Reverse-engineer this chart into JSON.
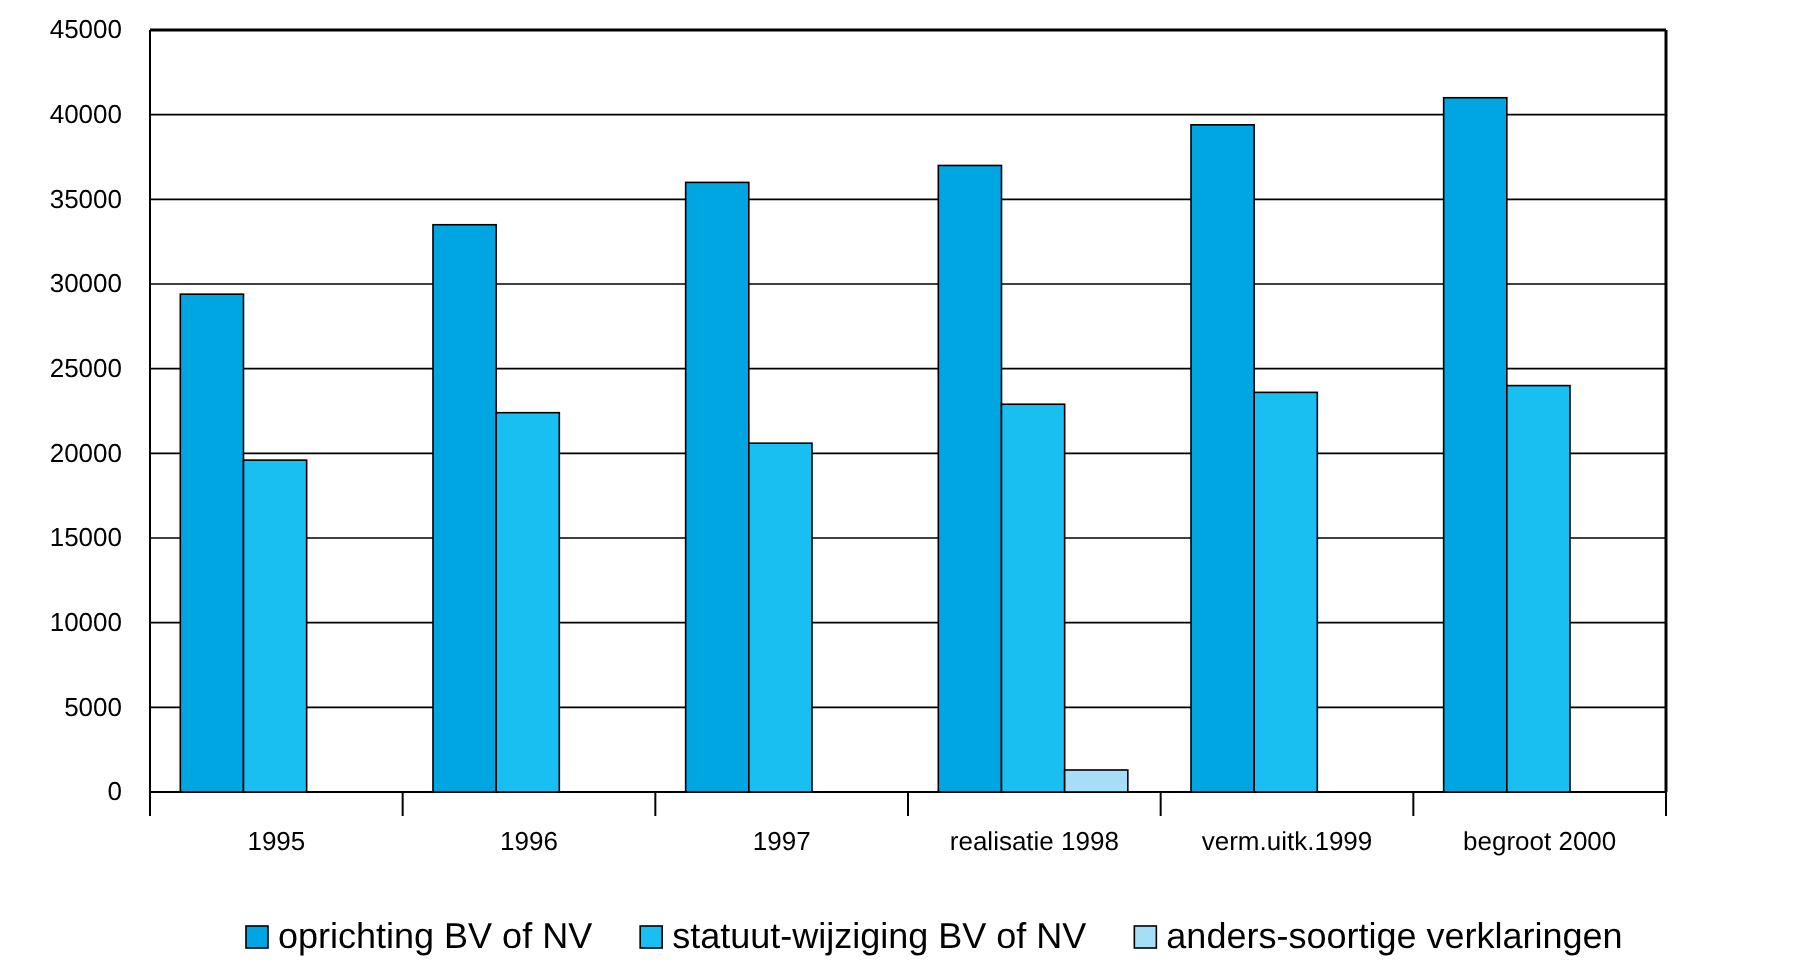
{
  "chart_data": {
    "type": "bar",
    "categories": [
      "1995",
      "1996",
      "1997",
      "realisatie 1998",
      "verm.uitk.1999",
      "begroot 2000"
    ],
    "series": [
      {
        "name": "oprichting BV of NV",
        "color": "#00a6e2",
        "values": [
          29400,
          33500,
          36000,
          37000,
          39400,
          41000
        ]
      },
      {
        "name": "statuut-wijziging BV of NV",
        "color": "#19bff0",
        "values": [
          19600,
          22400,
          20600,
          22900,
          23600,
          24000
        ]
      },
      {
        "name": "anders-soortige verklaringen",
        "color": "#a5def6",
        "values": [
          null,
          null,
          null,
          1300,
          null,
          null
        ]
      }
    ],
    "ylim": [
      0,
      45000
    ],
    "yticks": [
      0,
      5000,
      10000,
      15000,
      20000,
      25000,
      30000,
      35000,
      40000,
      45000
    ],
    "grid": "y",
    "legend": "bottom"
  }
}
